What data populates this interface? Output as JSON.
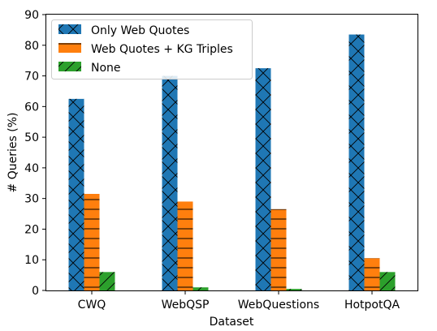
{
  "chart_data": {
    "type": "bar",
    "title": "",
    "xlabel": "Dataset",
    "ylabel": "# Queries (%)",
    "ylim": [
      0,
      90
    ],
    "yticks": [
      0,
      10,
      20,
      30,
      40,
      50,
      60,
      70,
      80,
      90
    ],
    "grid": false,
    "legend_position": "top-left",
    "categories": [
      "CWQ",
      "WebQSP",
      "WebQuestions",
      "HotpotQA"
    ],
    "series": [
      {
        "name": "Only Web Quotes",
        "values": [
          62.5,
          70,
          72.5,
          83.5
        ],
        "color": "#1f77b4",
        "hatch": "x"
      },
      {
        "name": "Web Quotes + KG Triples",
        "values": [
          31.5,
          29,
          26.5,
          10.5
        ],
        "color": "#ff7f0e",
        "hatch": "-"
      },
      {
        "name": "None",
        "values": [
          6,
          1,
          0.5,
          6
        ],
        "color": "#2ca02c",
        "hatch": "/"
      }
    ]
  }
}
